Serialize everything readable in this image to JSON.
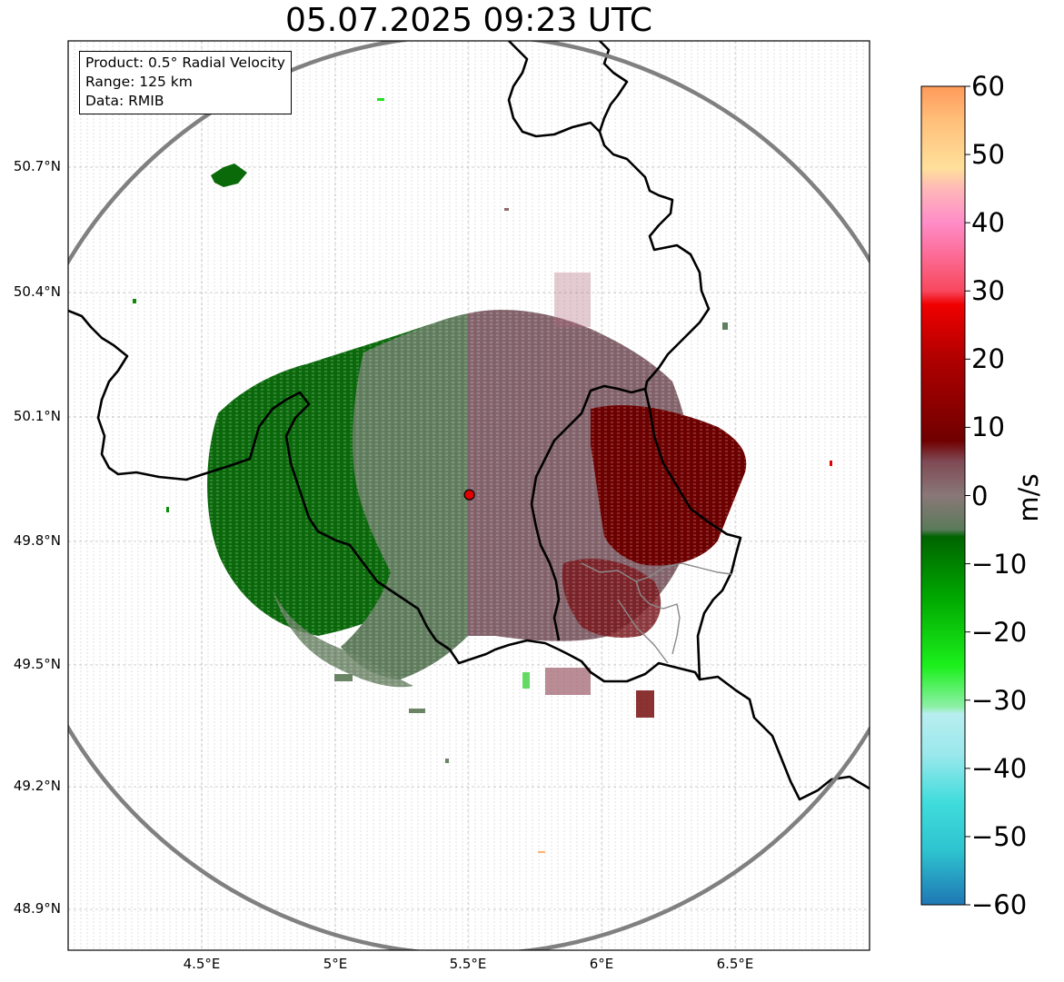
{
  "title": "05.07.2025 09:23 UTC",
  "info": {
    "product": "Product: 0.5° Radial Velocity",
    "range": "Range: 125 km",
    "data": "Data: RMIB"
  },
  "map": {
    "lon_range": [
      4.0,
      7.0
    ],
    "lat_range": [
      48.8,
      51.0
    ],
    "radar_site": {
      "lon": 5.505,
      "lat": 49.914
    },
    "range_ring_km": 125,
    "lat_ticks": [
      "50.7°N",
      "50.4°N",
      "50.1°N",
      "49.8°N",
      "49.5°N",
      "49.2°N",
      "48.9°N"
    ],
    "lon_ticks": [
      "4.5°E",
      "5°E",
      "5.5°E",
      "6°E",
      "6.5°E"
    ],
    "grid": true,
    "colors": {
      "inbound_strong": "#006400",
      "inbound_weak": "#5f7f5f",
      "outbound_weak": "#7f5f68",
      "outbound_strong": "#6b0000",
      "range_ring": "#808080",
      "border": "#000000",
      "radar_marker": "#e00000"
    }
  },
  "colorbar": {
    "unit": "m/s",
    "range": [
      -60,
      60
    ],
    "tick_labels": [
      "60",
      "50",
      "40",
      "30",
      "20",
      "10",
      "0",
      "−10",
      "−20",
      "−30",
      "−40",
      "−50",
      "−60"
    ],
    "stops": [
      {
        "value": -60,
        "color": "#1f77b4"
      },
      {
        "value": -52,
        "color": "#2ec4d0"
      },
      {
        "value": -45,
        "color": "#40dcdc"
      },
      {
        "value": -38,
        "color": "#9ae8ec"
      },
      {
        "value": -32,
        "color": "#b8eef0"
      },
      {
        "value": -31,
        "color": "#8ef0a8"
      },
      {
        "value": -25,
        "color": "#1cf01c"
      },
      {
        "value": -15,
        "color": "#00a800"
      },
      {
        "value": -6,
        "color": "#006400"
      },
      {
        "value": -5,
        "color": "#5a7a5a"
      },
      {
        "value": 0,
        "color": "#8a7878"
      },
      {
        "value": 5,
        "color": "#7f4a55"
      },
      {
        "value": 8,
        "color": "#700000"
      },
      {
        "value": 20,
        "color": "#b00000"
      },
      {
        "value": 28,
        "color": "#f00000"
      },
      {
        "value": 30,
        "color": "#f8485e"
      },
      {
        "value": 40,
        "color": "#ff8cc8"
      },
      {
        "value": 45,
        "color": "#ffb8b8"
      },
      {
        "value": 48,
        "color": "#ffe09a"
      },
      {
        "value": 55,
        "color": "#ffbf7a"
      },
      {
        "value": 60,
        "color": "#ff9a5a"
      }
    ]
  }
}
